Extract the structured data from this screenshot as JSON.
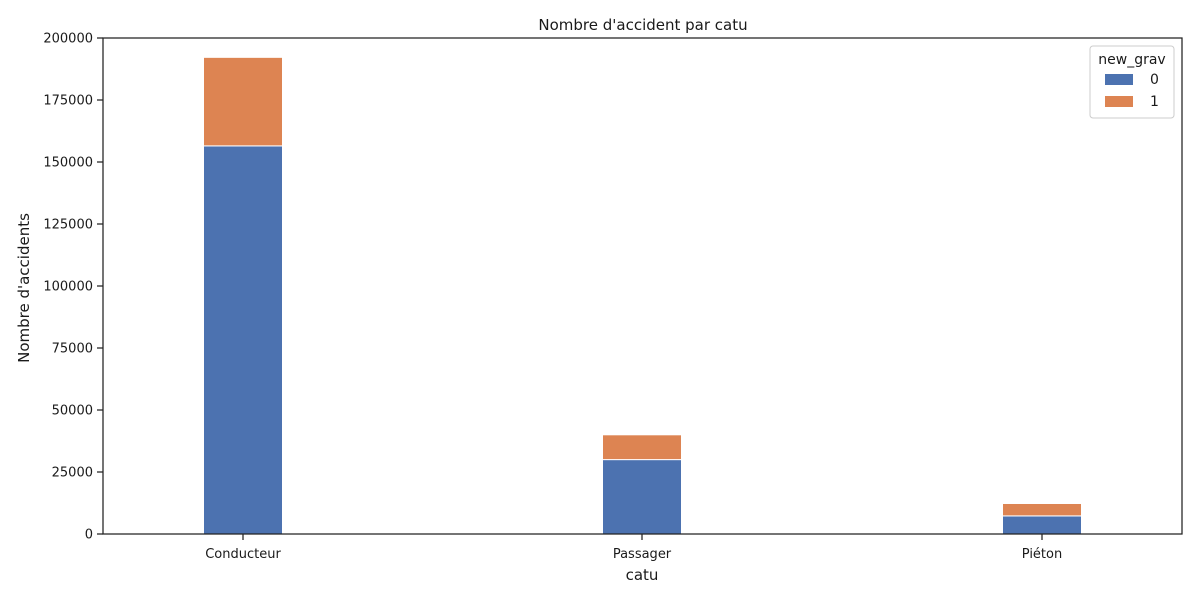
{
  "chart_data": {
    "type": "bar",
    "stacked": true,
    "title": "Nombre d'accident par catu",
    "xlabel": "catu",
    "ylabel": "Nombre d'accidents",
    "categories": [
      "Conducteur",
      "Passager",
      "Piéton"
    ],
    "series": [
      {
        "name": "0",
        "color": "#4c72b0",
        "values": [
          156500,
          30000,
          7300
        ]
      },
      {
        "name": "1",
        "color": "#dd8452",
        "values": [
          35700,
          10000,
          5000
        ]
      }
    ],
    "ylim": [
      0,
      200000
    ],
    "yticks": [
      0,
      25000,
      50000,
      75000,
      100000,
      125000,
      150000,
      175000,
      200000
    ],
    "ytick_labels": [
      "0",
      "25000",
      "50000",
      "75000",
      "100000",
      "125000",
      "150000",
      "175000",
      "200000"
    ],
    "legend": {
      "title": "new_grav",
      "placement": "top-right"
    },
    "grid": false
  }
}
